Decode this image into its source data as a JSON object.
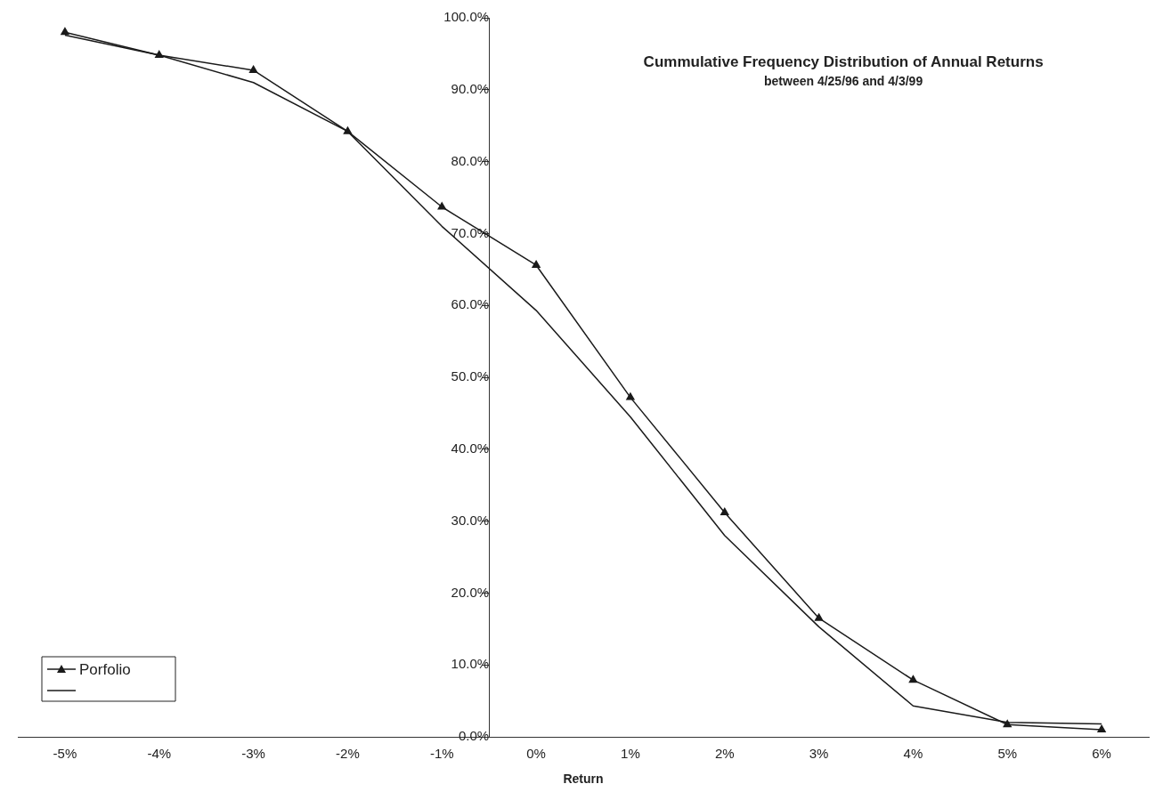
{
  "chart_data": {
    "type": "line",
    "title": "Cummulative Frequency Distribution of Annual Returns",
    "subtitle": "between 4/25/96 and 4/3/99",
    "xlabel": "Return",
    "categories": [
      "-5%",
      "-4%",
      "-3%",
      "-2%",
      "-1%",
      "0%",
      "1%",
      "2%",
      "3%",
      "4%",
      "5%",
      "6%"
    ],
    "series": [
      {
        "name": "Porfolio",
        "color": "#1a1a1a",
        "marker": "triangle",
        "values": [
          98.0,
          94.8,
          92.7,
          84.2,
          73.7,
          65.6,
          47.2,
          31.2,
          16.5,
          7.9,
          1.7,
          1.0
        ]
      },
      {
        "color": "#1a1a1a",
        "marker": "none",
        "values": [
          97.6,
          94.8,
          91.0,
          84.2,
          71.0,
          59.3,
          44.5,
          28.0,
          15.3,
          4.3,
          2.0,
          1.8
        ]
      }
    ],
    "ylim": [
      0,
      100
    ],
    "yticks": [
      {
        "value": 0,
        "label": "0.0%"
      },
      {
        "value": 10,
        "label": "10.0%"
      },
      {
        "value": 20,
        "label": "20.0%"
      },
      {
        "value": 30,
        "label": "30.0%"
      },
      {
        "value": 40,
        "label": "40.0%"
      },
      {
        "value": 50,
        "label": "50.0%"
      },
      {
        "value": 60,
        "label": "60.0%"
      },
      {
        "value": 70,
        "label": "70.0%"
      },
      {
        "value": 80,
        "label": "80.0%"
      },
      {
        "value": 90,
        "label": "90.0%"
      },
      {
        "value": 100,
        "label": "100.0%"
      }
    ],
    "grid": false,
    "legend": "bottom left",
    "line_style": "solid"
  }
}
